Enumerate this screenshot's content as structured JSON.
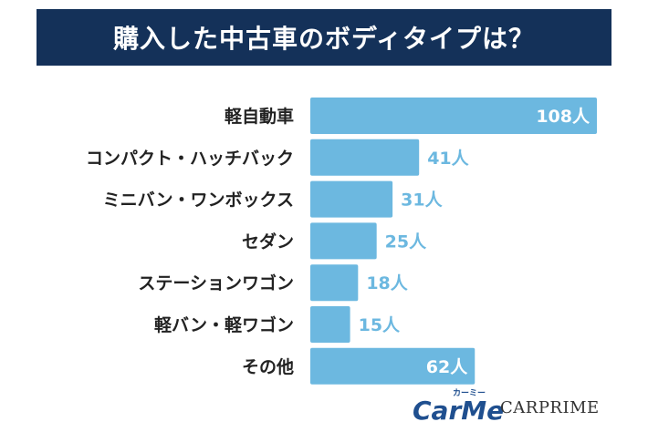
{
  "title": "購入した中古車のボディタイプは？",
  "colors": {
    "band": "#143159",
    "bar": "#6cb8e0",
    "value_text_inside": "#ffffff",
    "value_text_outside": "#6cb8e0"
  },
  "chart_data": {
    "type": "bar",
    "orientation": "horizontal",
    "title": "購入した中古車のボディタイプは？",
    "categories": [
      "軽自動車",
      "コンパクト・ハッチバック",
      "ミニバン・ワンボックス",
      "セダン",
      "ステーションワゴン",
      "軽バン・軽ワゴン",
      "その他"
    ],
    "values": [
      108,
      41,
      31,
      25,
      18,
      15,
      62
    ],
    "value_labels": [
      "108人",
      "41人",
      "31人",
      "25人",
      "18人",
      "15人",
      "62人"
    ],
    "unit": "人",
    "xlim": [
      0,
      108
    ],
    "grid": false,
    "legend": "none"
  },
  "logos": {
    "carme_kana": "カーミー",
    "carme": "CarMe",
    "carprime": "CARPRIME"
  }
}
